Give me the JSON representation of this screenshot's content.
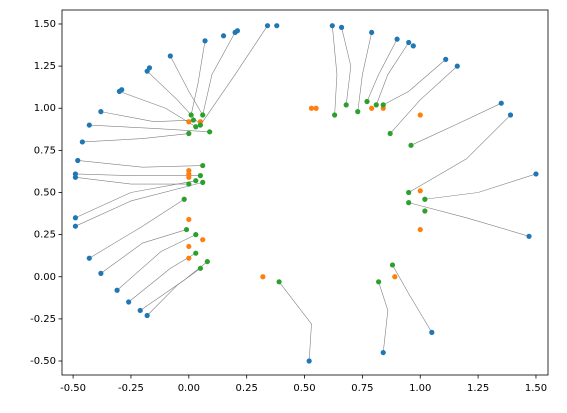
{
  "chart_data": {
    "type": "scatter",
    "xlim": [
      -0.548,
      1.552
    ],
    "ylim": [
      -0.583,
      1.583
    ],
    "xticks": [
      {
        "value": -0.5,
        "label": "-0.50"
      },
      {
        "value": -0.25,
        "label": "-0.25"
      },
      {
        "value": 0,
        "label": "0.00"
      },
      {
        "value": 0.25,
        "label": "0.25"
      },
      {
        "value": 0.5,
        "label": "0.50"
      },
      {
        "value": 0.75,
        "label": "0.75"
      },
      {
        "value": 1,
        "label": "1.00"
      },
      {
        "value": 1.25,
        "label": "1.25"
      },
      {
        "value": 1.5,
        "label": "1.50"
      }
    ],
    "yticks": [
      {
        "value": -0.5,
        "label": "-0.50"
      },
      {
        "value": -0.25,
        "label": "-0.25"
      },
      {
        "value": 0,
        "label": "0.00"
      },
      {
        "value": 0.25,
        "label": "0.25"
      },
      {
        "value": 0.5,
        "label": "0.50"
      },
      {
        "value": 0.75,
        "label": "0.75"
      },
      {
        "value": 1,
        "label": "1.00"
      },
      {
        "value": 1.25,
        "label": "1.25"
      },
      {
        "value": 1.5,
        "label": "1.50"
      }
    ],
    "path_color": "#808080",
    "paths": [
      {
        "x": [
          0.52,
          0.53,
          0.39
        ],
        "y": [
          -0.5,
          -0.28,
          -0.03
        ]
      },
      {
        "x": [
          0.84,
          0.86,
          0.82
        ],
        "y": [
          -0.45,
          -0.2,
          -0.03
        ]
      },
      {
        "x": [
          1.05,
          0.95,
          0.88
        ],
        "y": [
          -0.33,
          -0.1,
          0.07
        ]
      },
      {
        "x": [
          -0.18,
          -0.05,
          0.05
        ],
        "y": [
          -0.23,
          -0.05,
          0.05
        ]
      },
      {
        "x": [
          -0.21,
          -0.02,
          0.08
        ],
        "y": [
          -0.2,
          -0.02,
          0.09
        ]
      },
      {
        "x": [
          -0.26,
          -0.08,
          0.03
        ],
        "y": [
          -0.15,
          0.05,
          0.14
        ]
      },
      {
        "x": [
          -0.31,
          -0.12,
          0.03
        ],
        "y": [
          -0.08,
          0.15,
          0.25
        ]
      },
      {
        "x": [
          -0.38,
          -0.2,
          -0.01
        ],
        "y": [
          0.02,
          0.2,
          0.28
        ]
      },
      {
        "x": [
          -0.43,
          -0.2,
          -0.02
        ],
        "y": [
          0.11,
          0.3,
          0.46
        ]
      },
      {
        "x": [
          -0.49,
          -0.25,
          0.06
        ],
        "y": [
          0.3,
          0.45,
          0.56
        ]
      },
      {
        "x": [
          -0.49,
          -0.25,
          0.03
        ],
        "y": [
          0.35,
          0.5,
          0.57
        ]
      },
      {
        "x": [
          -0.49,
          -0.25,
          0.0
        ],
        "y": [
          0.59,
          0.55,
          0.55
        ]
      },
      {
        "x": [
          -0.49,
          -0.25,
          0.05
        ],
        "y": [
          0.61,
          0.6,
          0.6
        ]
      },
      {
        "x": [
          -0.48,
          -0.2,
          0.06
        ],
        "y": [
          0.69,
          0.65,
          0.66
        ]
      },
      {
        "x": [
          -0.46,
          -0.2,
          0.0
        ],
        "y": [
          0.8,
          0.82,
          0.85
        ]
      },
      {
        "x": [
          -0.43,
          -0.15,
          0.09
        ],
        "y": [
          0.9,
          0.88,
          0.86
        ]
      },
      {
        "x": [
          -0.38,
          -0.15,
          0.02
        ],
        "y": [
          0.98,
          0.92,
          0.93
        ]
      },
      {
        "x": [
          -0.3,
          -0.1,
          0.03
        ],
        "y": [
          1.1,
          1.0,
          0.89
        ]
      },
      {
        "x": [
          -0.18,
          -0.05,
          0.05
        ],
        "y": [
          1.22,
          1.05,
          0.9
        ]
      },
      {
        "x": [
          -0.08,
          0.0,
          0.06
        ],
        "y": [
          1.31,
          1.1,
          0.96
        ]
      },
      {
        "x": [
          0.07,
          0.04,
          0.01
        ],
        "y": [
          1.4,
          1.15,
          0.96
        ]
      },
      {
        "x": [
          0.2,
          0.1,
          0.06
        ],
        "y": [
          1.45,
          1.2,
          0.96
        ]
      },
      {
        "x": [
          0.34,
          0.2,
          0.05
        ],
        "y": [
          1.49,
          1.2,
          0.9
        ]
      },
      {
        "x": [
          0.62,
          0.64,
          0.63
        ],
        "y": [
          1.49,
          1.2,
          0.96
        ]
      },
      {
        "x": [
          0.66,
          0.7,
          0.68
        ],
        "y": [
          1.48,
          1.25,
          1.02
        ]
      },
      {
        "x": [
          0.79,
          0.75,
          0.73
        ],
        "y": [
          1.45,
          1.2,
          0.98
        ]
      },
      {
        "x": [
          0.9,
          0.82,
          0.77
        ],
        "y": [
          1.41,
          1.2,
          1.04
        ]
      },
      {
        "x": [
          0.95,
          0.86,
          0.81
        ],
        "y": [
          1.39,
          1.2,
          1.02
        ]
      },
      {
        "x": [
          1.11,
          0.95,
          0.84
        ],
        "y": [
          1.29,
          1.1,
          1.02
        ]
      },
      {
        "x": [
          1.16,
          1.0,
          0.87
        ],
        "y": [
          1.25,
          1.05,
          0.85
        ]
      },
      {
        "x": [
          1.35,
          1.15,
          0.96
        ],
        "y": [
          1.03,
          0.9,
          0.78
        ]
      },
      {
        "x": [
          1.39,
          1.2,
          0.95
        ],
        "y": [
          0.96,
          0.7,
          0.5
        ]
      },
      {
        "x": [
          1.5,
          1.25,
          1.02
        ],
        "y": [
          0.61,
          0.5,
          0.46
        ]
      },
      {
        "x": [
          1.47,
          1.2,
          0.95
        ],
        "y": [
          0.24,
          0.35,
          0.44
        ]
      }
    ],
    "series": [
      {
        "color": "#1f77b4",
        "x": [
          0.52,
          0.84,
          1.05,
          -0.18,
          -0.21,
          -0.26,
          -0.31,
          -0.38,
          -0.43,
          -0.49,
          -0.49,
          -0.49,
          -0.49,
          -0.48,
          -0.46,
          -0.43,
          -0.38,
          -0.3,
          -0.29,
          -0.18,
          -0.17,
          -0.08,
          0.07,
          0.15,
          0.2,
          0.21,
          0.34,
          0.38,
          0.62,
          0.66,
          0.79,
          0.9,
          0.95,
          0.97,
          1.11,
          1.16,
          1.35,
          1.39,
          1.5,
          1.47
        ],
        "values": [
          -0.5,
          -0.45,
          -0.33,
          -0.23,
          -0.2,
          -0.15,
          -0.08,
          0.02,
          0.11,
          0.3,
          0.35,
          0.59,
          0.61,
          0.69,
          0.8,
          0.9,
          0.98,
          1.1,
          1.11,
          1.22,
          1.24,
          1.31,
          1.4,
          1.43,
          1.45,
          1.46,
          1.49,
          1.49,
          1.49,
          1.48,
          1.45,
          1.41,
          1.39,
          1.37,
          1.29,
          1.25,
          1.03,
          0.96,
          0.61,
          0.24
        ]
      },
      {
        "color": "#ff7f0e",
        "x": [
          0.32,
          0.89,
          0.0,
          0.0,
          0.06,
          0.0,
          1.0,
          1.0,
          0.0,
          0.0,
          0.0,
          0.53,
          0.55,
          0.79,
          0.84,
          1.0,
          0.0,
          0.05
        ],
        "values": [
          0.0,
          0.0,
          0.11,
          0.18,
          0.22,
          0.34,
          0.28,
          0.51,
          0.59,
          0.61,
          0.63,
          1.0,
          1.0,
          1.0,
          1.0,
          0.96,
          0.92,
          0.92
        ]
      },
      {
        "color": "#2ca02c",
        "x": [
          0.39,
          0.82,
          0.88,
          0.05,
          0.08,
          0.03,
          0.03,
          -0.01,
          -0.02,
          0.06,
          0.03,
          0.0,
          0.05,
          0.06,
          0.95,
          0.95,
          1.02,
          1.02,
          0.96,
          0.87,
          0.63,
          0.68,
          0.73,
          0.77,
          0.81,
          0.84,
          0.0,
          0.09,
          0.02,
          0.03,
          0.05,
          0.06,
          0.01
        ],
        "values": [
          -0.03,
          -0.03,
          0.07,
          0.05,
          0.09,
          0.14,
          0.25,
          0.28,
          0.46,
          0.56,
          0.57,
          0.55,
          0.6,
          0.66,
          0.44,
          0.5,
          0.46,
          0.39,
          0.78,
          0.85,
          0.96,
          1.02,
          0.98,
          1.04,
          1.02,
          1.02,
          0.85,
          0.86,
          0.93,
          0.89,
          0.9,
          0.96,
          0.96
        ]
      }
    ]
  }
}
